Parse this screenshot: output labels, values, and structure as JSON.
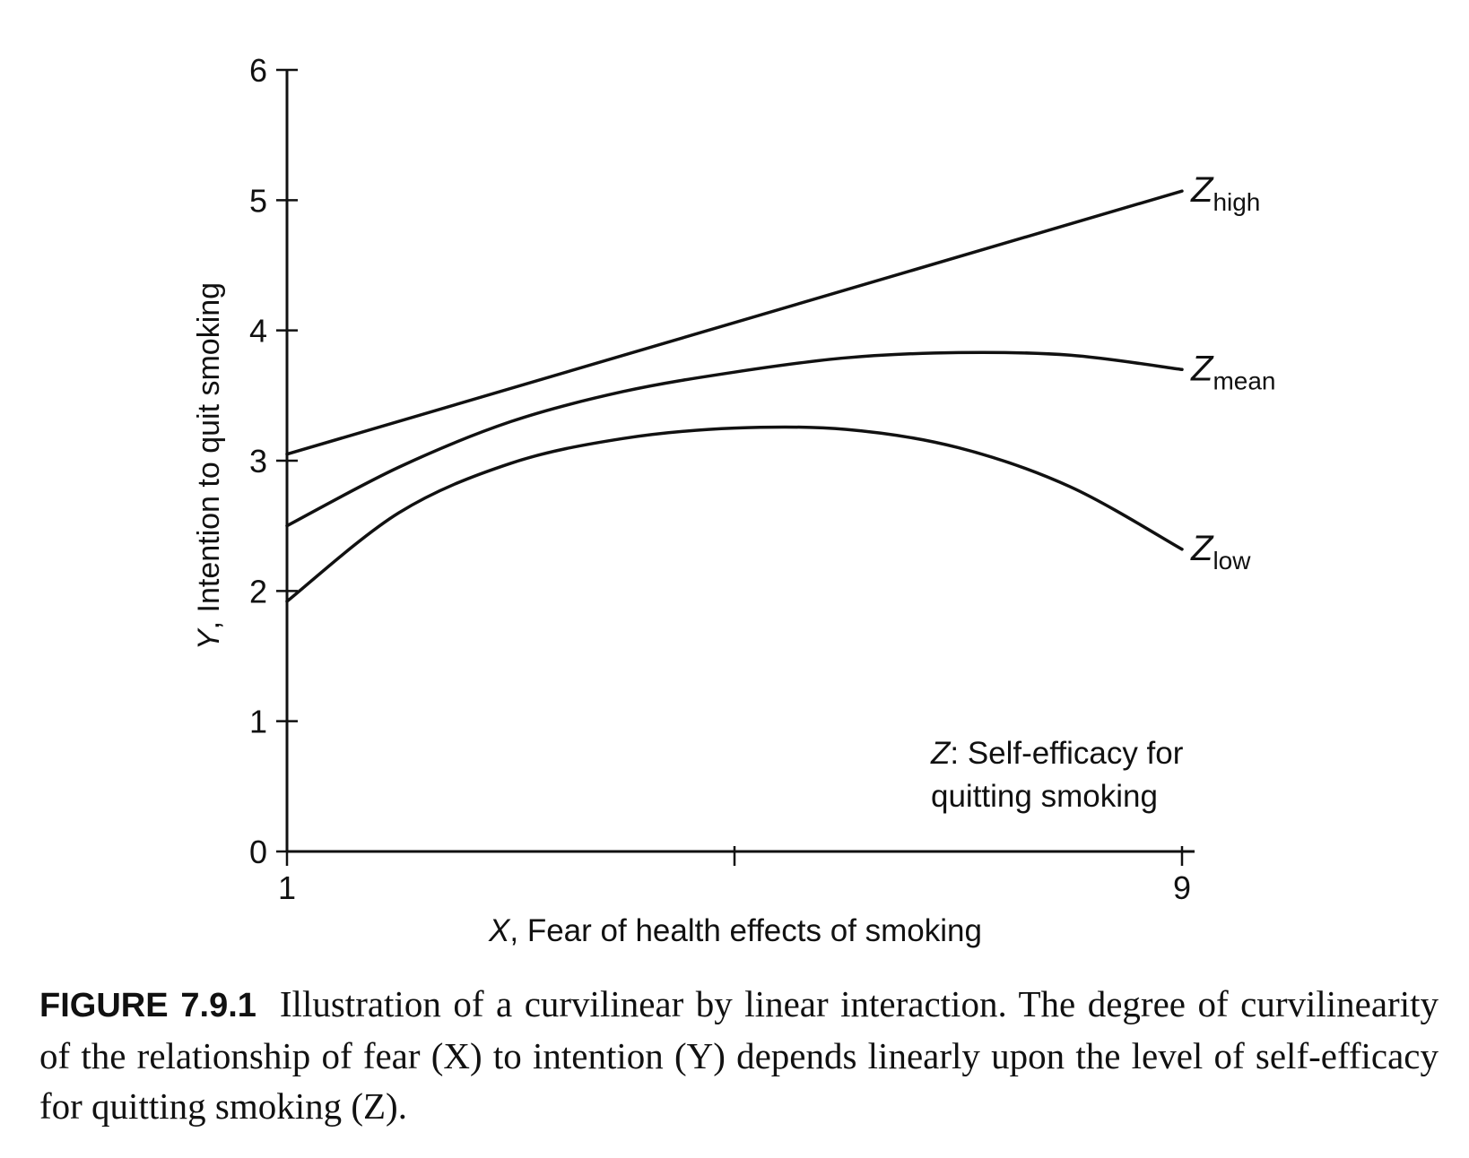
{
  "chart_data": {
    "type": "line",
    "xlabel_var": "X",
    "xlabel_text": ", Fear of health effects of smoking",
    "ylabel_var": "Y",
    "ylabel_text": ", Intention to quit smoking",
    "xlim": [
      1,
      9
    ],
    "ylim": [
      0,
      6
    ],
    "x_ticks": [
      1,
      5,
      9
    ],
    "x_tick_labels": [
      "1",
      "",
      "9"
    ],
    "y_ticks": [
      0,
      1,
      2,
      3,
      4,
      5,
      6
    ],
    "y_tick_labels": [
      "0",
      "1",
      "2",
      "3",
      "4",
      "5",
      "6"
    ],
    "grid": false,
    "annotation_var": "Z",
    "annotation_line1": ": Self-efficacy for",
    "annotation_line2": "quitting smoking",
    "series": [
      {
        "base": "Z",
        "sub": "high",
        "color": "#111111",
        "x": [
          1,
          9
        ],
        "y": [
          3.05,
          5.07
        ]
      },
      {
        "base": "Z",
        "sub": "mean",
        "color": "#111111",
        "x": [
          1,
          2,
          3,
          4,
          5,
          6,
          7,
          8,
          9
        ],
        "y": [
          2.5,
          2.95,
          3.3,
          3.53,
          3.68,
          3.79,
          3.83,
          3.81,
          3.7
        ]
      },
      {
        "base": "Z",
        "sub": "low",
        "color": "#111111",
        "x": [
          1,
          2,
          3,
          4,
          5,
          6,
          7,
          8,
          9
        ],
        "y": [
          1.92,
          2.6,
          2.98,
          3.17,
          3.25,
          3.24,
          3.1,
          2.8,
          2.32
        ]
      }
    ]
  },
  "caption": {
    "label": "FIGURE 7.9.1",
    "text": "Illustration of a curvilinear by linear interaction. The degree of curvilinearity of the relationship of fear (X) to intention (Y) depends linearly upon the level of self-efficacy for quitting smoking (Z)."
  }
}
